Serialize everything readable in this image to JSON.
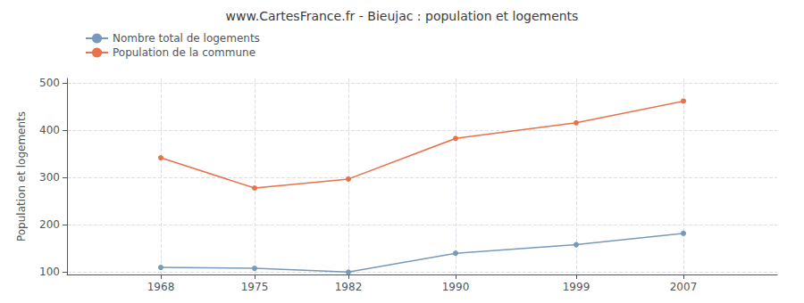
{
  "chart_data": {
    "type": "line",
    "title": "www.CartesFrance.fr - Bieujac : population et logements",
    "ylabel": "Population et logements",
    "x": [
      1968,
      1975,
      1982,
      1990,
      1999,
      2007
    ],
    "series": [
      {
        "name": "Nombre total de logements",
        "color": "#7799bb",
        "values": [
          110,
          108,
          100,
          140,
          158,
          182
        ]
      },
      {
        "name": "Population de la commune",
        "color": "#e8724a",
        "values": [
          342,
          278,
          297,
          383,
          416,
          462
        ]
      }
    ],
    "xlim": [
      1961,
      2014
    ],
    "xticks": [
      1968,
      1975,
      1982,
      1990,
      1999,
      2007
    ],
    "ylim": [
      95,
      510
    ],
    "yticks": [
      100,
      200,
      300,
      400,
      500
    ],
    "grid": true,
    "legend": "upper left",
    "marker": "circle"
  }
}
